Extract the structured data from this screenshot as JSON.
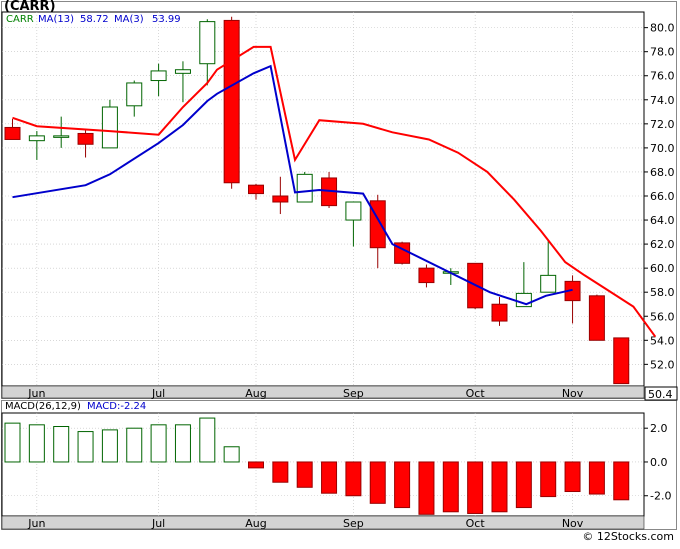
{
  "header": {
    "symbol": "(CARR)",
    "price_ticker": "CARR",
    "ma13_label": "MA(13)",
    "ma13_value": "58.72",
    "ma3_label": "MA(3)",
    "ma3_value": "53.99"
  },
  "macd_header": {
    "label": "MACD(26,12,9)",
    "value_label": "MACD:-2.24"
  },
  "last_price_label": "50.4",
  "watermark": "© 12Stocks.com",
  "colors": {
    "up_fill": "#ffffff",
    "up_stroke": "#006400",
    "down_fill": "#ff0000",
    "down_stroke": "#990000",
    "ma_short": "#0000cc",
    "ma_long": "#ff0000",
    "grid": "#c0c0c0",
    "axis_bg": "#d3d3d3",
    "ticker_text": "#008000",
    "ma_label_text": "#0000cc"
  },
  "chart_data": [
    {
      "type": "candlestick",
      "title": "(CARR)",
      "ylim": [
        50.2,
        81.3
      ],
      "y_ticks": [
        52.0,
        54.0,
        56.0,
        58.0,
        60.0,
        62.0,
        64.0,
        66.0,
        68.0,
        70.0,
        72.0,
        74.0,
        76.0,
        78.0,
        80.0
      ],
      "x_month_labels": [
        {
          "label": "Jun",
          "after_bar": 1
        },
        {
          "label": "Jul",
          "after_bar": 6
        },
        {
          "label": "Aug",
          "after_bar": 10
        },
        {
          "label": "Sep",
          "after_bar": 14
        },
        {
          "label": "Oct",
          "after_bar": 19
        },
        {
          "label": "Nov",
          "after_bar": 23
        }
      ],
      "grid": true,
      "legend": "top-left",
      "candles": [
        {
          "open": 71.7,
          "high": 72.4,
          "low": 70.9,
          "close": 70.7
        },
        {
          "open": 70.6,
          "high": 71.4,
          "low": 69.0,
          "close": 71.0
        },
        {
          "open": 71.0,
          "high": 72.6,
          "low": 70.0,
          "close": 71.0
        },
        {
          "open": 71.2,
          "high": 71.5,
          "low": 69.2,
          "close": 70.3
        },
        {
          "open": 70.0,
          "high": 74.0,
          "low": 70.0,
          "close": 73.4
        },
        {
          "open": 73.5,
          "high": 75.6,
          "low": 72.6,
          "close": 75.4
        },
        {
          "open": 75.6,
          "high": 77.0,
          "low": 74.3,
          "close": 76.4
        },
        {
          "open": 76.2,
          "high": 77.2,
          "low": 73.8,
          "close": 76.5
        },
        {
          "open": 77.0,
          "high": 80.7,
          "low": 75.2,
          "close": 80.5
        },
        {
          "open": 80.6,
          "high": 80.9,
          "low": 66.6,
          "close": 67.1
        },
        {
          "open": 66.9,
          "high": 67.0,
          "low": 65.7,
          "close": 66.2
        },
        {
          "open": 66.0,
          "high": 67.6,
          "low": 64.5,
          "close": 65.5
        },
        {
          "open": 65.5,
          "high": 68.0,
          "low": 65.5,
          "close": 67.8
        },
        {
          "open": 67.5,
          "high": 68.0,
          "low": 65.0,
          "close": 65.2
        },
        {
          "open": 64.0,
          "high": 65.5,
          "low": 61.8,
          "close": 65.5
        },
        {
          "open": 65.6,
          "high": 66.1,
          "low": 60.0,
          "close": 61.7
        },
        {
          "open": 62.1,
          "high": 62.2,
          "low": 60.3,
          "close": 60.4
        },
        {
          "open": 60.0,
          "high": 60.3,
          "low": 58.4,
          "close": 58.8
        },
        {
          "open": 59.7,
          "high": 60.0,
          "low": 58.6,
          "close": 59.7
        },
        {
          "open": 60.4,
          "high": 60.4,
          "low": 56.6,
          "close": 56.7
        },
        {
          "open": 57.0,
          "high": 57.6,
          "low": 55.2,
          "close": 55.6
        },
        {
          "open": 56.8,
          "high": 60.5,
          "low": 56.8,
          "close": 57.9
        },
        {
          "open": 58.0,
          "high": 62.3,
          "low": 58.0,
          "close": 59.4
        },
        {
          "open": 58.9,
          "high": 59.4,
          "low": 55.4,
          "close": 57.3
        },
        {
          "open": 57.7,
          "high": 57.8,
          "low": 54.0,
          "close": 54.0
        },
        {
          "open": 54.2,
          "high": 54.2,
          "low": 50.4,
          "close": 50.4
        }
      ],
      "series": [
        {
          "name": "MA(3)",
          "color": "#0000cc",
          "points": [
            [
              0,
              65.9
            ],
            [
              3,
              66.9
            ],
            [
              4,
              67.8
            ],
            [
              6,
              70.4
            ],
            [
              7,
              71.9
            ],
            [
              8,
              73.9
            ],
            [
              8.4,
              74.5
            ],
            [
              9.9,
              76.2
            ],
            [
              10.6,
              76.8
            ],
            [
              11.6,
              66.3
            ],
            [
              12.6,
              66.5
            ],
            [
              14.4,
              66.2
            ],
            [
              15.6,
              62.0
            ],
            [
              19.6,
              58.0
            ],
            [
              21.1,
              57.0
            ],
            [
              21.9,
              57.7
            ],
            [
              23.0,
              58.2
            ]
          ]
        },
        {
          "name": "MA(13)",
          "color": "#ff0000",
          "points": [
            [
              0,
              72.5
            ],
            [
              1,
              71.8
            ],
            [
              4,
              71.4
            ],
            [
              6,
              71.1
            ],
            [
              7,
              73.4
            ],
            [
              8,
              75.4
            ],
            [
              8.4,
              76.5
            ],
            [
              9.9,
              78.4
            ],
            [
              10.6,
              78.4
            ],
            [
              11.6,
              69.0
            ],
            [
              12.6,
              72.3
            ],
            [
              14.4,
              72.0
            ],
            [
              15.6,
              71.3
            ],
            [
              17.1,
              70.7
            ],
            [
              18.3,
              69.6
            ],
            [
              19.5,
              68.0
            ],
            [
              20.6,
              65.7
            ],
            [
              21.7,
              63.1
            ],
            [
              22.7,
              60.5
            ],
            [
              23.5,
              59.4
            ],
            [
              24.5,
              58.1
            ],
            [
              25.5,
              56.8
            ],
            [
              26.4,
              54.3
            ]
          ]
        }
      ]
    },
    {
      "type": "bar",
      "title": "MACD(26,12,9)",
      "ylim": [
        -3.2,
        2.9
      ],
      "y_ticks": [
        -2.0,
        0.0,
        2.0
      ],
      "values": [
        2.3,
        2.2,
        2.1,
        1.8,
        1.9,
        2.0,
        2.2,
        2.2,
        2.6,
        0.9,
        -0.35,
        -1.2,
        -1.5,
        -1.85,
        -2.0,
        -2.45,
        -2.7,
        -3.1,
        -2.95,
        -3.05,
        -2.95,
        -2.7,
        -2.05,
        -1.75,
        -1.9,
        -2.24
      ],
      "x_month_labels": [
        "Jun",
        "Jul",
        "Aug",
        "Sep",
        "Oct",
        "Nov"
      ],
      "grid": true
    }
  ]
}
